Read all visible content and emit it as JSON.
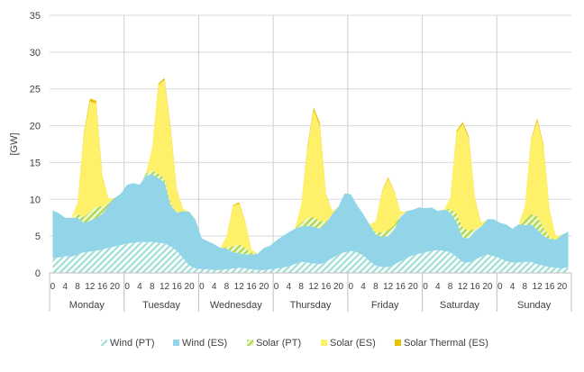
{
  "chart_data": {
    "type": "area",
    "stacked": true,
    "ylabel": "[GW]",
    "ylim": [
      0,
      35
    ],
    "yticks": [
      0,
      5,
      10,
      15,
      20,
      25,
      30,
      35
    ],
    "grid": true,
    "legend_position": "bottom",
    "hour_ticks": [
      "0",
      "4",
      "8",
      "12",
      "16",
      "20"
    ],
    "days": [
      "Monday",
      "Tuesday",
      "Wednesday",
      "Thursday",
      "Friday",
      "Saturday",
      "Sunday"
    ],
    "hour_step": 2,
    "series": [
      {
        "name": "Wind (PT)",
        "color": "#9edfd6",
        "pattern": "hatch",
        "values": [
          2.0,
          2.1,
          2.3,
          2.2,
          2.5,
          2.8,
          2.9,
          3.0,
          3.2,
          3.4,
          3.6,
          3.8,
          4.0,
          4.1,
          4.2,
          4.2,
          4.2,
          4.1,
          4.0,
          3.6,
          3.0,
          2.0,
          1.0,
          0.6,
          0.5,
          0.5,
          0.4,
          0.4,
          0.5,
          0.6,
          0.7,
          0.6,
          0.5,
          0.4,
          0.4,
          0.5,
          0.6,
          0.7,
          0.9,
          1.2,
          1.5,
          1.4,
          1.3,
          1.2,
          1.5,
          2.0,
          2.5,
          2.8,
          3.0,
          2.8,
          2.4,
          1.6,
          1.0,
          0.8,
          0.8,
          1.1,
          1.6,
          2.0,
          2.4,
          2.6,
          2.8,
          3.0,
          3.1,
          3.0,
          2.8,
          2.2,
          1.5,
          1.4,
          1.8,
          2.2,
          2.5,
          2.3,
          2.0,
          1.6,
          1.4,
          1.4,
          1.5,
          1.5,
          1.2,
          1.0,
          0.8,
          0.7,
          0.6,
          0.8
        ]
      },
      {
        "name": "Wind (ES)",
        "color": "#92d5e8",
        "pattern": "solid",
        "values": [
          6.5,
          6.0,
          5.2,
          5.3,
          5.0,
          4.0,
          4.2,
          4.5,
          4.8,
          5.8,
          6.6,
          7.0,
          8.0,
          8.1,
          7.8,
          9.0,
          9.2,
          8.8,
          8.3,
          5.5,
          5.2,
          6.4,
          7.3,
          6.6,
          4.2,
          3.8,
          3.5,
          3.0,
          2.8,
          2.2,
          2.0,
          1.9,
          2.0,
          2.2,
          3.0,
          3.2,
          3.8,
          4.3,
          4.6,
          4.8,
          4.8,
          5.0,
          5.0,
          4.8,
          5.2,
          6.0,
          6.5,
          8.0,
          7.7,
          6.4,
          5.6,
          5.0,
          4.2,
          4.1,
          4.2,
          4.8,
          6.0,
          6.4,
          6.2,
          6.3,
          6.0,
          5.9,
          5.3,
          5.6,
          5.4,
          4.7,
          3.3,
          3.3,
          3.9,
          4.1,
          4.8,
          5.0,
          4.8,
          5.0,
          4.6,
          5.2,
          5.0,
          5.1,
          4.7,
          4.0,
          3.8,
          3.8,
          4.6,
          4.8
        ]
      },
      {
        "name": "Solar (PT)",
        "color": "#c4e680",
        "pattern": "hatch",
        "values": [
          0,
          0,
          0,
          0,
          0.5,
          0.8,
          1.2,
          1.5,
          1.0,
          0.4,
          0,
          0,
          0,
          0,
          0,
          0.3,
          0.5,
          0.6,
          0.5,
          0.3,
          0,
          0,
          0,
          0,
          0,
          0,
          0,
          0,
          0.2,
          0.8,
          1.2,
          0.9,
          0.2,
          0,
          0,
          0,
          0,
          0,
          0,
          0,
          0.5,
          1.0,
          1.3,
          1.0,
          0.3,
          0,
          0,
          0,
          0,
          0,
          0,
          0,
          0.3,
          0.6,
          0.8,
          0.6,
          0.2,
          0,
          0,
          0,
          0,
          0,
          0,
          0,
          0.5,
          1.2,
          1.4,
          1.0,
          0.3,
          0,
          0,
          0,
          0,
          0,
          0,
          0,
          0.6,
          1.4,
          1.8,
          1.2,
          0.3,
          0,
          0,
          0
        ]
      },
      {
        "name": "Solar (ES)",
        "color": "#fff06a",
        "pattern": "solid",
        "values": [
          0,
          0,
          0,
          0,
          1.5,
          11.0,
          15.0,
          14.0,
          4.0,
          0.5,
          0,
          0,
          0,
          0,
          0,
          0,
          3.0,
          12.0,
          13.4,
          10.0,
          3.0,
          0.3,
          0,
          0,
          0,
          0,
          0,
          0,
          1.5,
          5.5,
          5.5,
          3.5,
          0.5,
          0,
          0,
          0,
          0,
          0,
          0,
          0,
          2.5,
          9.5,
          14.5,
          13.0,
          3.5,
          0.4,
          0,
          0,
          0,
          0,
          0,
          0,
          1.5,
          5.5,
          7.0,
          4.5,
          0.5,
          0,
          0,
          0,
          0,
          0,
          0,
          0,
          1.5,
          11.0,
          14.0,
          12.5,
          4.0,
          0.5,
          0,
          0,
          0,
          0,
          0,
          0,
          2.0,
          10.0,
          13.0,
          11.0,
          3.5,
          0.5,
          0,
          0
        ]
      },
      {
        "name": "Solar Thermal (ES)",
        "color": "#e6c200",
        "pattern": "solid",
        "values": [
          0,
          0,
          0,
          0,
          0,
          0.3,
          0.4,
          0.4,
          0.2,
          0,
          0,
          0,
          0,
          0,
          0,
          0,
          0,
          0.2,
          0.3,
          0.3,
          0.1,
          0,
          0,
          0,
          0,
          0,
          0,
          0,
          0,
          0.1,
          0.2,
          0.1,
          0,
          0,
          0,
          0,
          0,
          0,
          0,
          0,
          0,
          0.3,
          0.4,
          0.4,
          0.2,
          0,
          0,
          0,
          0,
          0,
          0,
          0,
          0,
          0.1,
          0.2,
          0.1,
          0,
          0,
          0,
          0,
          0,
          0,
          0,
          0,
          0,
          0.2,
          0.3,
          0.3,
          0.1,
          0,
          0,
          0,
          0,
          0,
          0,
          0,
          0,
          0.2,
          0.3,
          0.3,
          0.1,
          0,
          0,
          0
        ]
      }
    ]
  }
}
